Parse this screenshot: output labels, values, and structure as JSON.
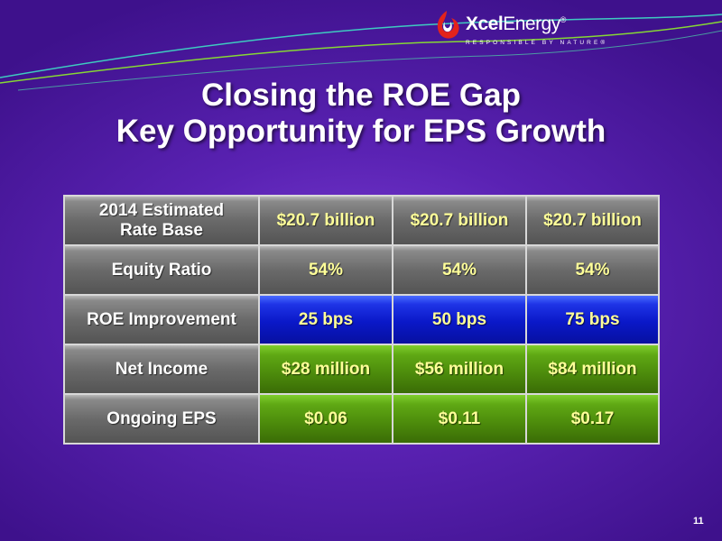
{
  "brand": {
    "name_bold": "Xcel",
    "name_regular": "Energy",
    "registered": "®",
    "tagline": "RESPONSIBLE BY NATURE®"
  },
  "title": {
    "line1": "Closing the ROE Gap",
    "line2": "Key Opportunity for EPS Growth"
  },
  "table": {
    "rows": [
      {
        "label": "2014 Estimated\nRate Base",
        "values": [
          "$20.7 billion",
          "$20.7 billion",
          "$20.7 billion"
        ],
        "style": "gray"
      },
      {
        "label": "Equity Ratio",
        "values": [
          "54%",
          "54%",
          "54%"
        ],
        "style": "gray"
      },
      {
        "label": "ROE Improvement",
        "values": [
          "25 bps",
          "50 bps",
          "75 bps"
        ],
        "style": "blue"
      },
      {
        "label": "Net Income",
        "values": [
          "$28 million",
          "$56 million",
          "$84 million"
        ],
        "style": "green"
      },
      {
        "label": "Ongoing EPS",
        "values": [
          "$0.06",
          "$0.11",
          "$0.17"
        ],
        "style": "green"
      }
    ]
  },
  "page_number": "11",
  "colors": {
    "background": "#5a22b3",
    "value_text": "#ffff99",
    "highlight_blue": "#0a18c8",
    "highlight_green": "#4e8e0c",
    "label_gray": "#6a6a6a"
  }
}
